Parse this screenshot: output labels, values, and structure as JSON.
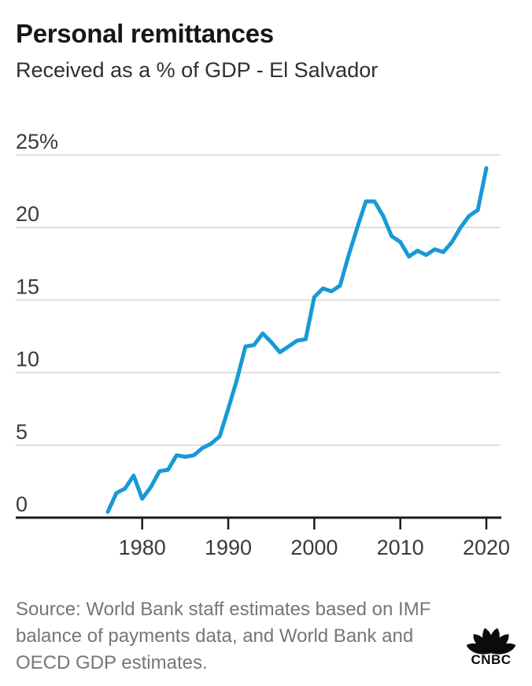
{
  "header": {
    "title": "Personal remittances",
    "subtitle": "Received as a % of GDP - El Salvador"
  },
  "chart_data": {
    "type": "line",
    "title": "Personal remittances",
    "subtitle": "Received as a % of GDP - El Salvador",
    "series_name": "Personal remittances received as % of GDP, El Salvador",
    "x": [
      1976,
      1977,
      1978,
      1979,
      1980,
      1981,
      1982,
      1983,
      1984,
      1985,
      1986,
      1987,
      1988,
      1989,
      1990,
      1991,
      1992,
      1993,
      1994,
      1995,
      1996,
      1997,
      1998,
      1999,
      2000,
      2001,
      2002,
      2003,
      2004,
      2005,
      2006,
      2007,
      2008,
      2009,
      2010,
      2011,
      2012,
      2013,
      2014,
      2015,
      2016,
      2017,
      2018,
      2019,
      2020
    ],
    "values": [
      0.4,
      1.7,
      2.0,
      2.9,
      1.3,
      2.1,
      3.2,
      3.3,
      4.3,
      4.2,
      4.3,
      4.8,
      5.1,
      5.6,
      7.5,
      9.5,
      11.8,
      11.9,
      12.7,
      12.1,
      11.4,
      11.8,
      12.2,
      12.3,
      15.2,
      15.8,
      15.6,
      16.0,
      18.1,
      20.0,
      21.8,
      21.8,
      20.8,
      19.4,
      19.0,
      18.0,
      18.4,
      18.1,
      18.5,
      18.3,
      19.0,
      20.0,
      20.8,
      21.2,
      24.1
    ],
    "xlabel": "",
    "ylabel": "",
    "ylim": [
      0,
      25
    ],
    "yticks": [
      0,
      5,
      10,
      15,
      20,
      25
    ],
    "ytick_labels": [
      "0",
      "5",
      "10",
      "15",
      "20",
      "25%"
    ],
    "xticks": [
      1980,
      1990,
      2000,
      2010,
      2020
    ],
    "xtick_labels": [
      "1980",
      "1990",
      "2000",
      "2010",
      "2020"
    ],
    "grid": true,
    "legend": "none",
    "line_color": "#1899d6",
    "grid_color": "#d8d8d8",
    "axis_color": "#1a1a1a",
    "tick_label_color": "#3a3a3a"
  },
  "footer": {
    "source_lines": [
      "Source: World Bank staff estimates based on IMF",
      "balance of payments data, and World Bank and",
      "OECD GDP estimates."
    ],
    "logo_text": "CNBC"
  }
}
